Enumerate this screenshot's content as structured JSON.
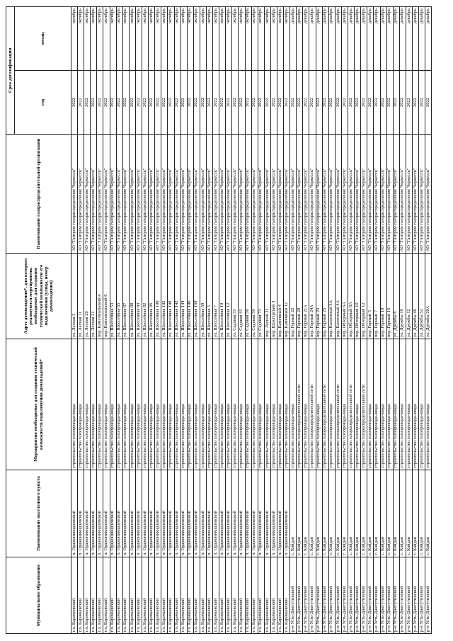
{
  "headers": {
    "municipality": "Муниципальное образование",
    "settlement": "Наименование населенного пункта",
    "measures": "Мероприятия необходимые для создания технической возможности подключения домовладений*",
    "address": "Адрес домовладения*, для которого реализуются мероприятия, необходимые для создания технической возможности его подключения (улица, номер домовладения)",
    "org": "Наименование газораспределительной организации",
    "term": "Срок догазификации",
    "year": "год",
    "month": "месяц"
  },
  "rows": [
    [
      "г.о. Карачаевский",
      "п. Орджоникидзевский",
      "строительство газопровода-ввода",
      "ул. Лесная 5",
      "АО \"Газпром газораспределение Черкесск\"",
      "2022",
      "октябрь"
    ],
    [
      "г.о. Карачаевский",
      "п. Орджоникидзевский",
      "строительство газопровода-ввода",
      "ул. Лесная 11",
      "АО \"Газпром газораспределение Черкесск\"",
      "2022",
      "октябрь"
    ],
    [
      "г.о. Карачаевский",
      "п. Орджоникидзевский",
      "строительство газопровода-ввода",
      "ул. Лесная 20",
      "АО \"Газпром газораспределение Черкесск\"",
      "2022",
      "октябрь"
    ],
    [
      "г.о. Карачаевский",
      "п. Орджоникидзевский",
      "строительство газопровода-ввода",
      "ул. Лесная 21",
      "АО \"Газпром газораспределение Черкесск\"",
      "2022",
      "октябрь"
    ],
    [
      "г.о. Карачаевский",
      "п. Орджоникидзевский",
      "строительство газопровода-ввода",
      "пер. Комсомольский 4",
      "АО \"Газпром газораспределение Черкесск\"",
      "2022",
      "октябрь"
    ],
    [
      "г.о. Карачаевский",
      "п. Орджоникидзевский",
      "строительство газопровода-ввода",
      "пер. Комсомольский 6",
      "АО \"Газпром газораспределение Черкесск\"",
      "2022",
      "октябрь"
    ],
    [
      "г.о. Карачаевский",
      "п. Орджоникидзевский",
      "строительство газопровода-ввода",
      "ул. Шоссейная 53",
      "АО \"Газпром газораспределение Черкесск\"",
      "2022",
      "октябрь"
    ],
    [
      "г.о. Карачаевский",
      "п. Орджоникидзевский",
      "строительство газопровода-ввода",
      "ул. Шоссейная 65",
      "АО \"Газпром газораспределение Черкесск\"",
      "2022",
      "октябрь"
    ],
    [
      "г.о. Карачаевский",
      "п. Орджоникидзевский",
      "строительство газопровода-ввода",
      "ул. Шоссейная 87",
      "АО \"Газпром газораспределение Черкесск\"",
      "2022",
      "октябрь"
    ],
    [
      "г.о. Карачаевский",
      "п. Орджоникидзевский",
      "строительство газопровода-ввода",
      "ул. Шоссейная 88",
      "АО \"Газпром газораспределение Черкесск\"",
      "2022",
      "октябрь"
    ],
    [
      "г.о. Карачаевский",
      "п. Орджоникидзевский",
      "строительство газопровода-ввода",
      "ул. Шоссейная 80",
      "АО \"Газпром газораспределение Черкесск\"",
      "2022",
      "октябрь"
    ],
    [
      "г.о. Карачаевский",
      "п. Орджоникидзевский",
      "строительство газопровода-ввода",
      "ул. Шоссейная 82",
      "АО \"Газпром газораспределение Черкесск\"",
      "2022",
      "октябрь"
    ],
    [
      "г.о. Карачаевский",
      "п. Орджоникидзевский",
      "строительство газопровода-ввода",
      "ул. Шоссейная 96",
      "АО \"Газпром газораспределение Черкесск\"",
      "2022",
      "октябрь"
    ],
    [
      "г.о. Карачаевский",
      "п. Орджоникидзевский",
      "строительство газопровода-ввода",
      "ул. Шоссейная 100",
      "АО \"Газпром газораспределение Черкесск\"",
      "2022",
      "октябрь"
    ],
    [
      "г.о. Карачаевский",
      "п. Орджоникидзевский",
      "строительство газопровода-ввода",
      "ул. Шоссейная 102",
      "АО \"Газпром газораспределение Черкесск\"",
      "2022",
      "октябрь"
    ],
    [
      "г.о. Карачаевский",
      "п. Орджоникидзевский",
      "строительство газопровода-ввода",
      "ул. Шоссейная 108",
      "АО \"Газпром газораспределение Черкесск\"",
      "2022",
      "октябрь"
    ],
    [
      "г.о. Карачаевский",
      "п. Орджоникидзевский",
      "строительство газопровода-ввода",
      "ул. Шоссейная 142",
      "АО \"Газпром газораспределение Черкесск\"",
      "2022",
      "октябрь"
    ],
    [
      "г.о. Карачаевский",
      "п. Орджоникидзевский",
      "строительство газопровода-ввода",
      "ул. Шоссейная 144",
      "АО \"Газпром газораспределение Черкесск\"",
      "2022",
      "октябрь"
    ],
    [
      "г.о. Карачаевский",
      "п. Орджоникидзевский",
      "строительство газопровода-ввода",
      "ул. Шоссейная 146",
      "АО \"Газпром газораспределение Черкесск\"",
      "2022",
      "октябрь"
    ],
    [
      "г.о. Карачаевский",
      "п. Орджоникидзевский",
      "строительство газопровода-ввода",
      "ул. Шоссейная 160",
      "АО \"Газпром газораспределение Черкесск\"",
      "2022",
      "октябрь"
    ],
    [
      "г.о. Карачаевский",
      "п. Орджоникидзевский",
      "строительство газопровода-ввода",
      "ул. Шоссейная 58",
      "АО \"Газпром газораспределение Черкесск\"",
      "2022",
      "октябрь"
    ],
    [
      "г.о. Карачаевский",
      "п. Орджоникидзевский",
      "строительство газопровода-ввода",
      "ул. Шоссейная 5",
      "АО \"Газпром газораспределение Черкесск\"",
      "2022",
      "октябрь"
    ],
    [
      "г.о. Карачаевский",
      "п. Орджоникидзевский",
      "строительство газопровода-ввода",
      "ул. Шоссейная 7",
      "АО \"Газпром газораспределение Черкесск\"",
      "2022",
      "октябрь"
    ],
    [
      "г.о. Карачаевский",
      "п. Орджоникидзевский",
      "строительство газопровода-ввода",
      "ул. Шоссейная 10",
      "АО \"Газпром газораспределение Черкесск\"",
      "2022",
      "октябрь"
    ],
    [
      "г.о. Карачаевский",
      "п. Орджоникидзевский",
      "строительство газопровода-ввода",
      "ул. Шоссейная 12",
      "АО \"Газпром газораспределение Черкесск\"",
      "2022",
      "октябрь"
    ],
    [
      "г.о. Карачаевский",
      "п. Орджоникидзевский",
      "строительство газопровода-ввода",
      "ул. Садовая 35",
      "АО \"Газпром газораспределение Черкесск\"",
      "2022",
      "октябрь"
    ],
    [
      "г.о. Карачаевский",
      "п. Орджоникидзевский",
      "строительство газопровода-ввода",
      "ул. Садовая 41",
      "АО \"Газпром газораспределение Черкесск\"",
      "2022",
      "октябрь"
    ],
    [
      "г.о. Карачаевский",
      "п. Орджоникидзевский",
      "строительство газопровода-ввода",
      "ул. Садовая 50",
      "АО \"Газпром газораспределение Черкесск\"",
      "2022",
      "октябрь"
    ],
    [
      "г.о. Карачаевский",
      "п. Орджоникидзевский",
      "строительство газопровода-ввода",
      "ул. Садовая 50",
      "АО \"Газпром газораспределение Черкесск\"",
      "2022",
      "октябрь"
    ],
    [
      "г.о. Карачаевский",
      "п. Орджоникидзевский",
      "строительство газопровода-ввода",
      "ул. Садовая 73",
      "АО \"Газпром газораспределение Черкесск\"",
      "2022",
      "октябрь"
    ],
    [
      "г.о. Карачаевский",
      "п. Орджоникидзевский",
      "строительство газопровода-ввода",
      "пер. Лесной 21",
      "АО \"Газпром газораспределение Черкесск\"",
      "2022",
      "октябрь"
    ],
    [
      "г.о. Карачаевский",
      "п. Орджоникидзевский",
      "строительство газопровода-ввода",
      "пер. Шахтерский 3",
      "АО \"Газпром газораспределение Черкесск\"",
      "2022",
      "октябрь"
    ],
    [
      "г.о. Карачаевский",
      "п. Орджоникидзевский",
      "строительство газопровода-ввода",
      "пер. Каменный 4",
      "АО \"Газпром газораспределение Черкесск\"",
      "2022",
      "октябрь"
    ],
    [
      "г.о. Карачаевский",
      "п. Орджоникидзевский",
      "строительство газопровода-ввода",
      "пер. Каменный 12",
      "АО \"Газпром газораспределение Черкесск\"",
      "2022",
      "октябрь"
    ],
    [
      "р-н Усть-Джегутинский",
      "с. Койдан",
      "строительство газопровода-ввода",
      "пер. Горный 22",
      "АО \"Газпром газораспределение Черкесск\"",
      "2022",
      "декабрь"
    ],
    [
      "р-н Усть-Джегутинский",
      "с. Койдан",
      "строительство газораспределительной сети",
      "пер. Горный 20",
      "АО \"Газпром газораспределение Черкесск\"",
      "2022",
      "декабрь"
    ],
    [
      "р-н Усть-Джегутинский",
      "с. Койдан",
      "строительство газопровода-ввода",
      "пер. Горный 21А",
      "АО \"Газпром газораспределение Черкесск\"",
      "2022",
      "декабрь"
    ],
    [
      "р-н Усть-Джегутинский",
      "с. Койдан",
      "строительство газораспределительной сети",
      "пер. Горный 24А",
      "АО \"Газпром газораспределение Черкесск\"",
      "2022",
      "декабрь"
    ],
    [
      "р-н Усть-Джегутинский",
      "с. Койдан",
      "строительство газопровода-ввода",
      "пер. Горный 23",
      "АО \"Газпром газораспределение Черкесск\"",
      "2022",
      "декабрь"
    ],
    [
      "р-н Усть-Джегутинский",
      "с. Койдан",
      "строительство газораспределительной сети",
      "пер. Горный 25",
      "АО \"Газпром газораспределение Черкесск\"",
      "2022",
      "декабрь"
    ],
    [
      "р-н Усть-Джегутинский",
      "с. Койдан",
      "строительство газопровода-ввода",
      "пер. Колхозный 3А",
      "АО \"Газпром газораспределение Черкесск\"",
      "2022",
      "декабрь"
    ],
    [
      "р-н Усть-Джегутинский",
      "с. Койдан",
      "строительство газораспределительной сети",
      "пер. Колхозный 4А",
      "АО \"Газпром газораспределение Черкесск\"",
      "2022",
      "декабрь"
    ],
    [
      "р-н Усть-Джегутинский",
      "с. Койдан",
      "строительство газопровода-ввода",
      "пер. Обзорный 6А",
      "АО \"Газпром газораспределение Черкесск\"",
      "2022",
      "декабрь"
    ],
    [
      "р-н Усть-Джегутинский",
      "с. Койдан",
      "строительство газораспределительной сети",
      "пер. Обзорный 8А",
      "АО \"Газпром газораспределение Черкесск\"",
      "2022",
      "декабрь"
    ],
    [
      "р-н Усть-Джегутинский",
      "с. Койдан",
      "строительство газопровода-ввода",
      "пер. Обзорный 10",
      "АО \"Газпром газораспределение Черкесск\"",
      "2022",
      "декабрь"
    ],
    [
      "р-н Усть-Джегутинский",
      "с. Койдан",
      "строительство газораспределительной сети",
      "пер. Обзорный 12",
      "АО \"Газпром газораспределение Черкесск\"",
      "2022",
      "декабрь"
    ],
    [
      "р-н Усть-Джегутинский",
      "с. Койдан",
      "строительство газопровода-ввода",
      "пер. Горный 5",
      "АО \"Газпром газораспределение Черкесск\"",
      "2022",
      "декабрь"
    ],
    [
      "р-н Усть-Джегутинский",
      "с. Койдан",
      "строительство газопровода-ввода",
      "пер. Горный 7",
      "АО \"Газпром газораспределение Черкесск\"",
      "2022",
      "декабрь"
    ],
    [
      "р-н Усть-Джегутинский",
      "с. Койдан",
      "строительство газопровода-ввода",
      "пер. Горный 10",
      "АО \"Газпром газораспределение Черкесск\"",
      "2022",
      "декабрь"
    ],
    [
      "р-н Усть-Джегутинский",
      "с. Койдан",
      "строительство газопровода-ввода",
      "пер. Горный 16",
      "АО \"Газпром газораспределение Черкесск\"",
      "2022",
      "декабрь"
    ],
    [
      "р-н Усть-Джегутинский",
      "с. Койдан",
      "строительство газопровода-ввода",
      "ул. Дружбы 6",
      "АО \"Газпром газораспределение Черкесск\"",
      "2022",
      "декабрь"
    ],
    [
      "р-н Усть-Джегутинский",
      "с. Койдан",
      "строительство газопровода-ввода",
      "ул. Дружбы 10",
      "АО \"Газпром газораспределение Черкесск\"",
      "2022",
      "декабрь"
    ],
    [
      "р-н Усть-Джегутинский",
      "с. Койдан",
      "строительство газопровода-ввода",
      "ул. Дружбы 12",
      "АО \"Газпром газораспределение Черкесск\"",
      "2022",
      "декабрь"
    ],
    [
      "р-н Усть-Джегутинский",
      "с. Койдан",
      "строительство газопровода-ввода",
      "ул. Дружбы 46",
      "АО \"Газпром газораспределение Черкесск\"",
      "2022",
      "декабрь"
    ],
    [
      "р-н Усть-Джегутинский",
      "с. Койдан",
      "строительство газопровода-ввода",
      "ул. Дружбы 52",
      "АО \"Газпром газораспределение Черкесск\"",
      "2022",
      "декабрь"
    ],
    [
      "р-н Усть-Джегутинский",
      "с. Койдан",
      "строительство газопровода-ввода",
      "ул. Дружбы 26А",
      "АО \"Газпром газораспределение Черкесск\"",
      "2022",
      "декабрь"
    ]
  ]
}
